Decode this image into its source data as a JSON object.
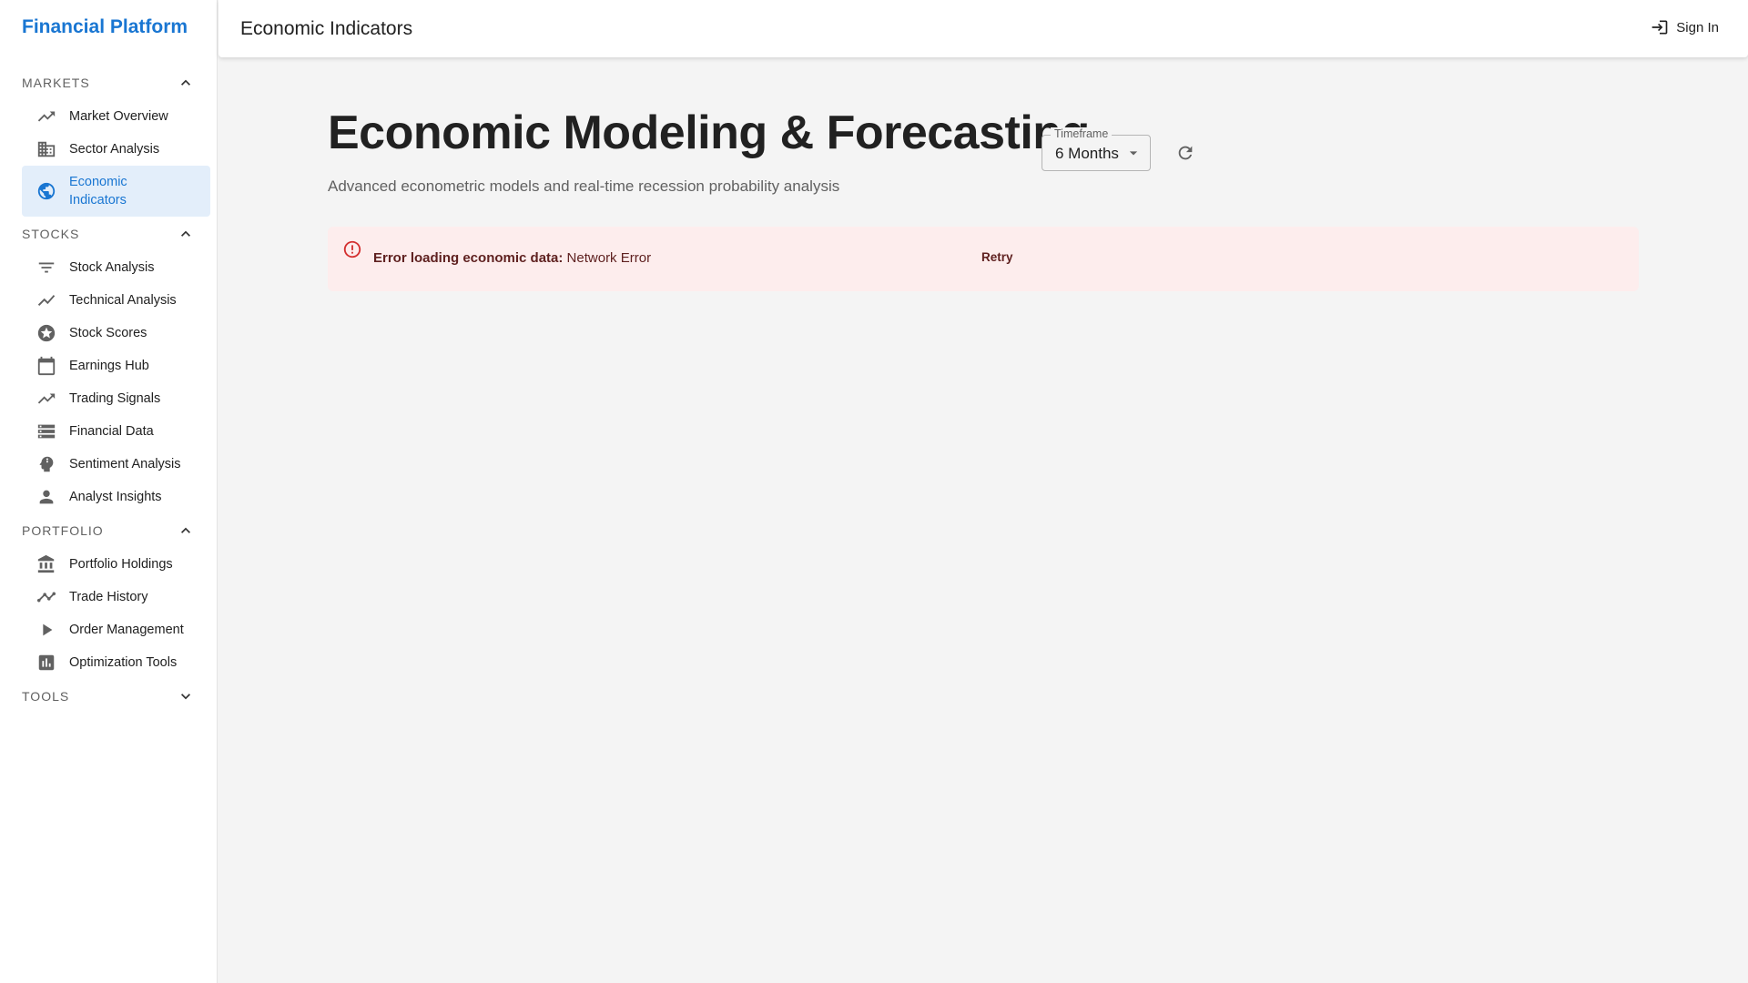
{
  "sidebar": {
    "brand": "Financial Platform",
    "sections": [
      {
        "title": "MARKETS",
        "items": [
          {
            "label": "Market Overview",
            "icon": "trending-up-icon"
          },
          {
            "label": "Sector Analysis",
            "icon": "business-icon"
          },
          {
            "label": "Economic Indicators",
            "icon": "public-globe-icon",
            "active": true
          }
        ]
      },
      {
        "title": "STOCKS",
        "items": [
          {
            "label": "Stock Analysis",
            "icon": "filter-list-icon"
          },
          {
            "label": "Technical Analysis",
            "icon": "show-chart-icon"
          },
          {
            "label": "Stock Scores",
            "icon": "star-circle-icon"
          },
          {
            "label": "Earnings Hub",
            "icon": "calendar-icon"
          },
          {
            "label": "Trading Signals",
            "icon": "trending-up-icon"
          },
          {
            "label": "Financial Data",
            "icon": "storage-icon"
          },
          {
            "label": "Sentiment Analysis",
            "icon": "psychology-icon"
          },
          {
            "label": "Analyst Insights",
            "icon": "person-icon"
          }
        ]
      },
      {
        "title": "PORTFOLIO",
        "items": [
          {
            "label": "Portfolio Holdings",
            "icon": "bank-icon"
          },
          {
            "label": "Trade History",
            "icon": "timeline-icon"
          },
          {
            "label": "Order Management",
            "icon": "play-arrow-icon"
          },
          {
            "label": "Optimization Tools",
            "icon": "assessment-icon"
          }
        ]
      },
      {
        "title": "TOOLS",
        "items": []
      }
    ]
  },
  "topbar": {
    "title": "Economic Indicators",
    "signin_label": "Sign In"
  },
  "main": {
    "title": "Economic Modeling & Forecasting",
    "subtitle": "Advanced econometric models and real-time recession probability analysis",
    "timeframe": {
      "legend": "Timeframe",
      "value": "6 Months"
    },
    "alert": {
      "prefix": "Error loading economic data:",
      "message": "Network Error",
      "retry_label": "Retry"
    }
  },
  "colors": {
    "brand": "#1976d2",
    "active_bg": "#e3eefa",
    "alert_bg": "#fdeded",
    "alert_text": "#5f2120",
    "error_icon": "#d32f2f"
  }
}
